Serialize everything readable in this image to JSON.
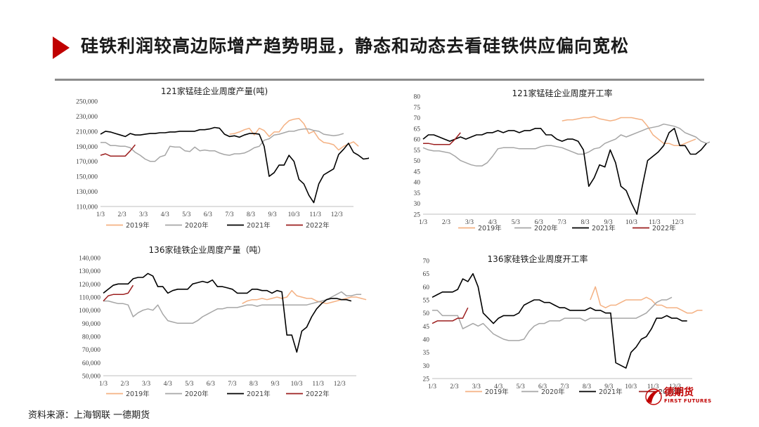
{
  "header": {
    "title": "硅铁利润较高边际增产趋势明显，静态和动态去看硅铁供应偏向宽松"
  },
  "footer": {
    "source": "资料来源：上海钢联 一德期货",
    "logo_name": "德期货",
    "logo_sub": "FIRST FUTURES"
  },
  "colors": {
    "y2019": "#f4b183",
    "y2020": "#a6a6a6",
    "y2021": "#000000",
    "y2022": "#9c1f1f",
    "accent": "#c00000"
  },
  "chart_data": [
    {
      "id": "mn-output",
      "type": "line",
      "title": "121家锰硅企业周度产量(吨)",
      "x_ticks": [
        "1/3",
        "2/3",
        "3/3",
        "4/3",
        "5/3",
        "6/3",
        "7/3",
        "8/3",
        "9/3",
        "10/3",
        "11/3",
        "12/3"
      ],
      "x_range": [
        1,
        52
      ],
      "ylim": [
        110000,
        250000
      ],
      "y_ticks": [
        "110,000",
        "130,000",
        "150,000",
        "170,000",
        "190,000",
        "210,000",
        "230,000",
        "250,000"
      ],
      "legend": [
        "2019年",
        "2020年",
        "2021年",
        "2022年"
      ],
      "series": [
        {
          "name": "2019年",
          "key": "y2019",
          "x_start": 27,
          "values": [
            206000,
            207000,
            209000,
            212000,
            214000,
            205000,
            214000,
            211000,
            203000,
            209000,
            209000,
            218000,
            224000,
            226000,
            227000,
            220000,
            207000,
            210000,
            200000,
            195000,
            194000,
            192000,
            185000,
            190000,
            193000,
            196000,
            190000
          ]
        },
        {
          "name": "2020年",
          "key": "y2020",
          "x_start": 1,
          "values": [
            195000,
            195000,
            191000,
            191000,
            190000,
            190000,
            188000,
            182000,
            178000,
            173000,
            170000,
            170000,
            176000,
            178000,
            190000,
            189000,
            189000,
            184000,
            183000,
            189000,
            184000,
            185000,
            184000,
            184000,
            181000,
            179000,
            178000,
            180000,
            180000,
            181000,
            184000,
            188000,
            190000,
            198000,
            200000,
            205000,
            206000,
            208000,
            210000,
            210000,
            212000,
            213000,
            213000,
            211000,
            210000,
            206000,
            205000,
            204000,
            205000,
            207000
          ]
        },
        {
          "name": "2021年",
          "key": "y2021",
          "x_start": 1,
          "values": [
            206000,
            210000,
            209000,
            207000,
            205000,
            203000,
            207000,
            205000,
            205000,
            206000,
            207000,
            207000,
            208000,
            208000,
            209000,
            209000,
            210000,
            210000,
            210000,
            210000,
            212000,
            212000,
            213000,
            215000,
            214000,
            206000,
            203000,
            204000,
            202000,
            205000,
            207000,
            207000,
            206000,
            190000,
            150000,
            155000,
            165000,
            165000,
            178000,
            170000,
            146000,
            140000,
            125000,
            115000,
            140000,
            152000,
            156000,
            160000,
            179000,
            186000,
            194000,
            182000,
            178000,
            173000,
            174000,
            178000
          ]
        },
        {
          "name": "2022年",
          "key": "y2022",
          "x_start": 1,
          "values": [
            178000,
            180000,
            177000,
            177000,
            177000,
            177000,
            184000,
            192000
          ]
        }
      ]
    },
    {
      "id": "mn-rate",
      "type": "line",
      "title": "121家锰硅企业周度开工率",
      "x_ticks": [
        "1/3",
        "2/3",
        "3/3",
        "4/3",
        "5/3",
        "6/3",
        "7/3",
        "8/3",
        "9/3",
        "10/3",
        "11/3",
        "12/3"
      ],
      "x_range": [
        1,
        52
      ],
      "ylim": [
        25,
        80
      ],
      "y_ticks": [
        "25",
        "30",
        "35",
        "40",
        "45",
        "50",
        "55",
        "60",
        "65",
        "70",
        "75",
        "80"
      ],
      "legend": [
        "2019年",
        "2020年",
        "2021年",
        "2022年"
      ],
      "series": [
        {
          "name": "2019年",
          "key": "y2019",
          "x_start": 27,
          "values": [
            68.5,
            69,
            69,
            69.5,
            70,
            70,
            70.5,
            69.5,
            69,
            68.5,
            69,
            70,
            70,
            70,
            69.5,
            69,
            66,
            62,
            60,
            58,
            58,
            57,
            57,
            58,
            59,
            60
          ]
        },
        {
          "name": "2020年",
          "key": "y2020",
          "x_start": 1,
          "values": [
            56,
            55,
            54.5,
            54.5,
            54,
            53.5,
            52,
            50,
            49,
            48,
            47.5,
            47.5,
            49,
            52,
            55.5,
            56,
            56,
            56,
            55.5,
            55.5,
            55.5,
            55.5,
            56.5,
            57,
            57,
            56.5,
            56,
            55,
            54,
            53,
            53,
            54,
            55.5,
            56,
            58,
            59,
            60,
            62,
            61,
            62,
            63,
            64,
            65,
            65.5,
            66,
            67,
            66.5,
            66,
            65,
            63,
            62,
            61,
            59,
            58,
            59,
            60
          ]
        },
        {
          "name": "2021年",
          "key": "y2021",
          "x_start": 1,
          "values": [
            60,
            62,
            62,
            61,
            60,
            59,
            60,
            61,
            60,
            61,
            62,
            62,
            63,
            63,
            64,
            63,
            64,
            64,
            63,
            64,
            64,
            65,
            65,
            62,
            62,
            60,
            59,
            60,
            60,
            59,
            55,
            38,
            42,
            48,
            47,
            55,
            49,
            38,
            36,
            30,
            25,
            38,
            50,
            52,
            54,
            57,
            63,
            65,
            57,
            57,
            53,
            53,
            55,
            58
          ]
        },
        {
          "name": "2022年",
          "key": "y2022",
          "x_start": 1,
          "values": [
            58,
            58,
            57.5,
            57.5,
            57.5,
            57.5,
            60,
            63
          ]
        }
      ]
    },
    {
      "id": "fe-output",
      "type": "line",
      "title": "136家硅铁企业周度产量（吨）",
      "x_ticks": [
        "1/3",
        "2/3",
        "3/3",
        "4/3",
        "5/3",
        "6/3",
        "7/3",
        "8/3",
        "9/3",
        "10/3",
        "11/3",
        "12/3"
      ],
      "x_range": [
        1,
        52
      ],
      "ylim": [
        50000,
        140000
      ],
      "y_ticks": [
        "50,000",
        "60,000",
        "70,000",
        "80,000",
        "90,000",
        "100,000",
        "110,000",
        "120,000",
        "130,000",
        "140,000"
      ],
      "legend": [
        "2019年",
        "2020年",
        "2021年",
        "2022年"
      ],
      "series": [
        {
          "name": "2019年",
          "key": "y2019",
          "x_start": 29,
          "values": [
            105000,
            107000,
            108000,
            108000,
            109000,
            108000,
            109000,
            110000,
            109000,
            110000,
            115000,
            111000,
            110000,
            109000,
            109000,
            107000,
            106000,
            105000,
            106000,
            107000,
            108000,
            109000,
            110000,
            110000,
            109000,
            108000
          ]
        },
        {
          "name": "2020年",
          "key": "y2020",
          "x_start": 1,
          "values": [
            107000,
            107000,
            106000,
            105000,
            105000,
            104000,
            95000,
            98000,
            100000,
            101000,
            100000,
            104000,
            97000,
            92000,
            91000,
            90000,
            90000,
            90000,
            90000,
            92000,
            95000,
            97000,
            99000,
            101000,
            101000,
            102000,
            102000,
            102000,
            103000,
            104000,
            104000,
            103000,
            104000,
            104000,
            104000,
            104000,
            104000,
            104000,
            104000,
            104000,
            104000,
            104000,
            105000,
            106000,
            107000,
            108000,
            110000,
            112000,
            114000,
            111000,
            111000,
            112000,
            112000
          ]
        },
        {
          "name": "2021年",
          "key": "y2021",
          "x_start": 1,
          "values": [
            113000,
            116000,
            119000,
            120000,
            120000,
            120000,
            124000,
            125000,
            125000,
            128000,
            126000,
            118000,
            118000,
            113000,
            115000,
            116000,
            116000,
            116000,
            120000,
            121000,
            122000,
            121000,
            123000,
            118000,
            118000,
            117000,
            116000,
            113000,
            113000,
            113000,
            116000,
            116000,
            115000,
            115000,
            113000,
            115000,
            114000,
            81000,
            81000,
            68000,
            84000,
            87000,
            95000,
            101000,
            105000,
            108000,
            109000,
            109000,
            108000,
            108000,
            107000
          ]
        },
        {
          "name": "2022年",
          "key": "y2022",
          "x_start": 1,
          "values": [
            107000,
            111000,
            112000,
            112000,
            112000,
            113000,
            119000
          ]
        }
      ]
    },
    {
      "id": "fe-rate",
      "type": "line",
      "title": "136家硅铁企业周度开工率",
      "x_ticks": [
        "1/3",
        "2/3",
        "3/3",
        "4/3",
        "5/3",
        "6/3",
        "7/3",
        "8/3",
        "9/3",
        "10/3",
        "11/3",
        "12/3"
      ],
      "x_range": [
        1,
        52
      ],
      "ylim": [
        25,
        70
      ],
      "y_ticks": [
        "25",
        "30",
        "35",
        "40",
        "45",
        "50",
        "55",
        "60",
        "65",
        "70"
      ],
      "legend": [
        "2019年",
        "2020年",
        "2021年",
        "2022年"
      ],
      "series": [
        {
          "name": "2019年",
          "key": "y2019",
          "x_start": 32,
          "values": [
            55,
            60,
            53,
            52,
            53,
            53,
            54,
            55,
            55,
            55,
            55,
            56,
            55,
            53,
            53,
            52,
            52,
            52,
            51,
            50,
            50,
            51,
            51
          ]
        },
        {
          "name": "2020年",
          "key": "y2020",
          "x_start": 1,
          "values": [
            51,
            51,
            49,
            49,
            49,
            49,
            44,
            45,
            46,
            45,
            46,
            44,
            42,
            41,
            40,
            39.5,
            39.5,
            39.5,
            40,
            43,
            45,
            46,
            46,
            47,
            47,
            47,
            48,
            48,
            48,
            48,
            47,
            48,
            48,
            48,
            48,
            48,
            48,
            48,
            48,
            48,
            48,
            49,
            50,
            52,
            54,
            55,
            55,
            56
          ]
        },
        {
          "name": "2021年",
          "key": "y2021",
          "x_start": 1,
          "values": [
            56,
            57,
            58,
            58,
            58,
            59,
            63,
            62,
            65,
            60,
            50,
            48,
            46,
            48,
            49,
            49,
            49,
            50,
            53,
            54,
            55,
            55,
            54,
            54,
            53,
            52,
            52,
            51,
            51,
            51,
            51,
            52,
            51,
            51,
            50,
            50,
            31,
            30,
            29,
            35,
            37,
            40,
            41,
            44,
            48,
            48,
            49,
            48,
            48,
            47,
            47
          ]
        },
        {
          "name": "2022年",
          "key": "y2022",
          "x_start": 1,
          "values": [
            46,
            47,
            47,
            47,
            47,
            48,
            48,
            52
          ]
        }
      ]
    }
  ]
}
